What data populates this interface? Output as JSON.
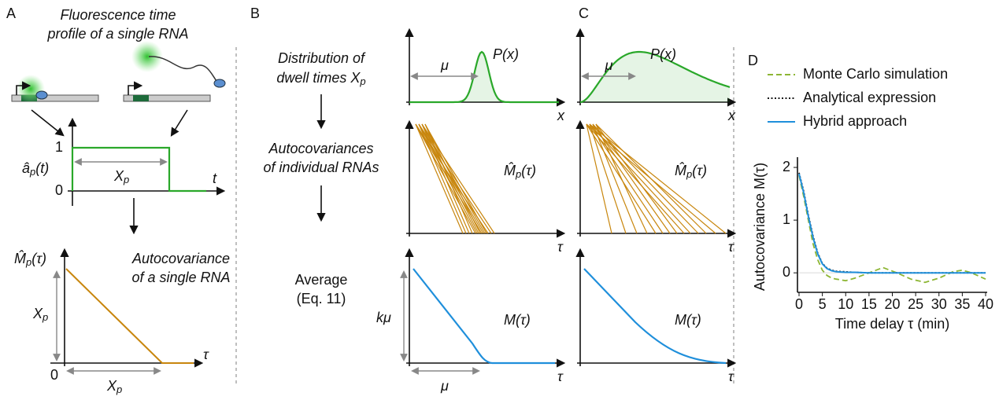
{
  "panel_a": {
    "label": "A",
    "title_lines": [
      "Fluorescence time",
      "profile of a single RNA"
    ],
    "signal_label": {
      "main": "â",
      "sub": "p",
      "rest": "(t)"
    },
    "tick_high": "1",
    "tick_low": "0",
    "duration_label": {
      "main": "X",
      "sub": "p"
    },
    "time_axis": "t",
    "autocov_label": {
      "main": "M̂",
      "sub": "p",
      "rest": "(τ)"
    },
    "caption_lines": [
      "Autocovariance",
      "of a single RNA"
    ],
    "origin": "0",
    "lag_axis": "τ"
  },
  "panel_b": {
    "label": "B",
    "step1_line": "Distribution of",
    "step1_last": {
      "main": "dwell times X",
      "sub": "p"
    },
    "step2_lines": [
      "Autocovariances",
      "of individual RNAs"
    ],
    "step3_lines": [
      "Average",
      "(Eq. 11)"
    ],
    "pdf_label": "P(x)",
    "mean_label": "μ",
    "x_axis": "x",
    "autocov_label": {
      "main": "M̂",
      "sub": "p",
      "rest": "(τ)"
    },
    "lag_axis": "τ",
    "avg_label": "M(τ)",
    "height_label": "kμ"
  },
  "panel_c": {
    "label": "C",
    "pdf_label": "P(x)",
    "mean_label": "μ",
    "x_axis": "x",
    "autocov_label": {
      "main": "M̂",
      "sub": "p",
      "rest": "(τ)"
    },
    "lag_axis": "τ",
    "avg_label": "M(τ)"
  },
  "chart_data": {
    "type": "line",
    "label": "D",
    "xlabel": "Time delay τ (min)",
    "ylabel": "Autocovariance M(τ)",
    "x": [
      0,
      1,
      2,
      3,
      4,
      5,
      6,
      7,
      8,
      10,
      12,
      15,
      18,
      21,
      24,
      27,
      30,
      33,
      35,
      37,
      40
    ],
    "series": [
      {
        "name": "Monte Carlo simulation",
        "color": "#8db634",
        "style": "dashed",
        "values": [
          1.85,
          1.45,
          1.0,
          0.55,
          0.25,
          0.05,
          -0.05,
          -0.1,
          -0.12,
          -0.15,
          -0.1,
          0.0,
          0.1,
          0.0,
          -0.12,
          -0.18,
          -0.1,
          0.02,
          0.05,
          0.0,
          -0.12
        ]
      },
      {
        "name": "Analytical expression",
        "color": "#1a1a1a",
        "style": "dotted",
        "values": [
          1.9,
          1.55,
          1.1,
          0.7,
          0.38,
          0.18,
          0.09,
          0.05,
          0.03,
          0.02,
          0.01,
          0,
          0,
          0,
          0,
          0,
          0,
          0,
          0,
          0,
          0
        ]
      },
      {
        "name": "Hybrid approach",
        "color": "#1f8fdb",
        "style": "solid",
        "values": [
          1.88,
          1.52,
          1.07,
          0.67,
          0.36,
          0.17,
          0.08,
          0.04,
          0.02,
          0.01,
          0.01,
          0,
          0,
          0,
          0,
          0,
          0,
          0,
          0,
          0,
          0
        ]
      }
    ],
    "xlim": [
      0,
      40
    ],
    "ylim": [
      -0.37,
      2.12
    ],
    "xticks": [
      0,
      5,
      10,
      15,
      20,
      25,
      30,
      35,
      40
    ],
    "yticks": [
      0,
      1,
      2
    ],
    "zero_line": true
  }
}
